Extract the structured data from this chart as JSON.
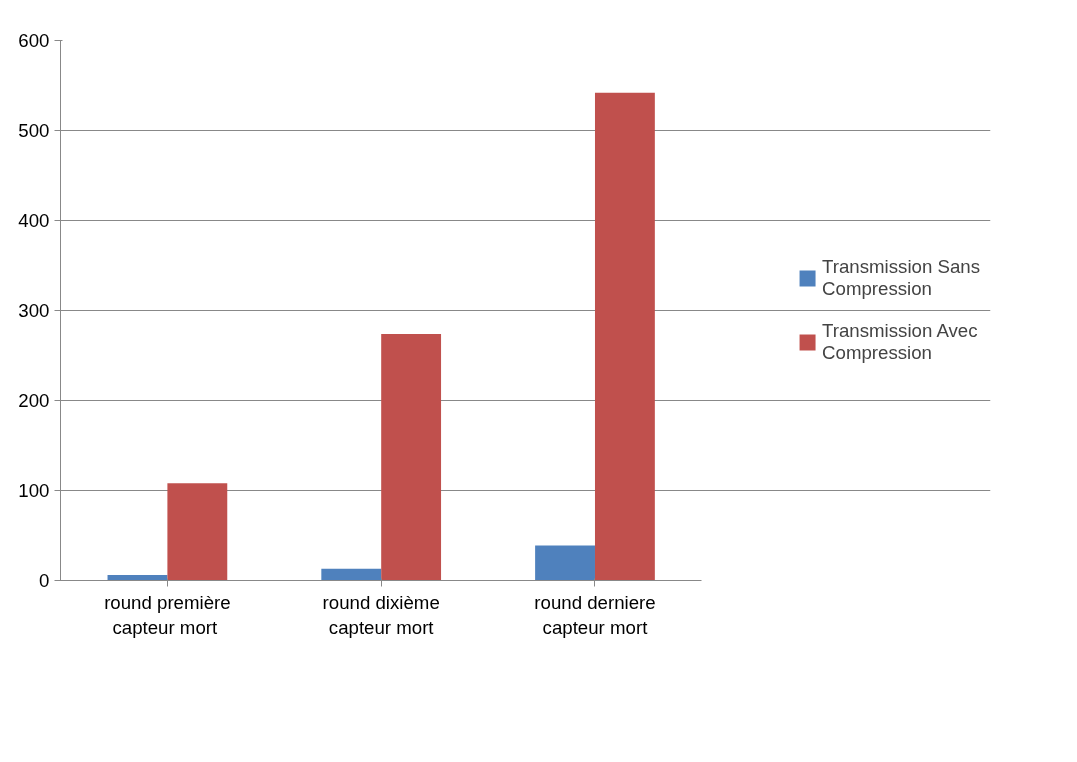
{
  "chart_data": {
    "type": "bar",
    "categories": [
      "round première capteur  mort",
      "round dixième capteur mort",
      "round derniere capteur mort"
    ],
    "series": [
      {
        "name": "Transmission Sans Compression",
        "color": "#4f81bd",
        "values": [
          6,
          13,
          39
        ]
      },
      {
        "name": "Transmission Avec Compression",
        "color": "#c0504d",
        "values": [
          108,
          274,
          542
        ]
      }
    ],
    "ylim": [
      0,
      600
    ],
    "yticks": [
      0,
      100,
      200,
      300,
      400,
      500,
      600
    ],
    "grid": "y",
    "legend": "right"
  }
}
